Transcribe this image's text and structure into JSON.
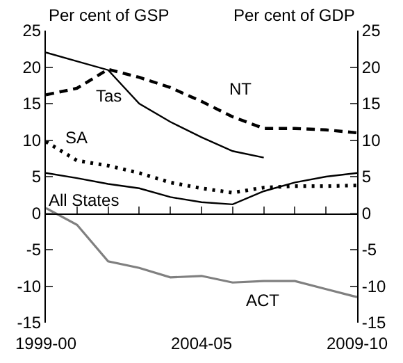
{
  "chart_data": {
    "type": "line",
    "ylabel": "Per cent of GSP",
    "y2label": "Per cent of GDP",
    "categories": [
      "1999-00",
      null,
      null,
      null,
      null,
      "2004-05",
      null,
      null,
      null,
      null,
      "2009-10"
    ],
    "ylim": [
      -15,
      25
    ],
    "yticks": [
      -15,
      -10,
      -5,
      0,
      5,
      10,
      15,
      20,
      25
    ],
    "y2lim": [
      -15,
      25
    ],
    "y2ticks": [
      -15,
      -10,
      -5,
      0,
      5,
      10,
      15,
      20,
      25
    ],
    "legend": false,
    "marker": "none",
    "series": [
      {
        "name": "Tas",
        "color": "#000000",
        "line_style": "solid",
        "values": [
          22,
          20.8,
          19.6,
          15,
          12.5,
          10.4,
          8.5,
          7.6,
          null,
          null,
          null
        ]
      },
      {
        "name": "NT",
        "color": "#000000",
        "line_style": "dashed",
        "values": [
          16.2,
          17.1,
          19.7,
          18.6,
          17.2,
          15.3,
          13.2,
          11.6,
          11.6,
          11.4,
          11.0
        ]
      },
      {
        "name": "SA",
        "color": "#000000",
        "line_style": "dotted",
        "values": [
          9.8,
          7.2,
          6.5,
          5.5,
          4.2,
          3.4,
          2.8,
          3.5,
          3.7,
          3.7,
          3.8
        ]
      },
      {
        "name": "All States",
        "color": "#000000",
        "line_style": "solid",
        "values": [
          5.5,
          4.8,
          4.0,
          3.4,
          2.2,
          1.5,
          1.2,
          3.0,
          4.2,
          5.0,
          5.5
        ]
      },
      {
        "name": "ACT",
        "color": "#808080",
        "line_style": "solid",
        "values": [
          0.7,
          -1.6,
          -6.6,
          -7.5,
          -8.8,
          -8.6,
          -9.5,
          -9.3,
          -9.3,
          -10.4,
          -11.5
        ]
      }
    ]
  }
}
